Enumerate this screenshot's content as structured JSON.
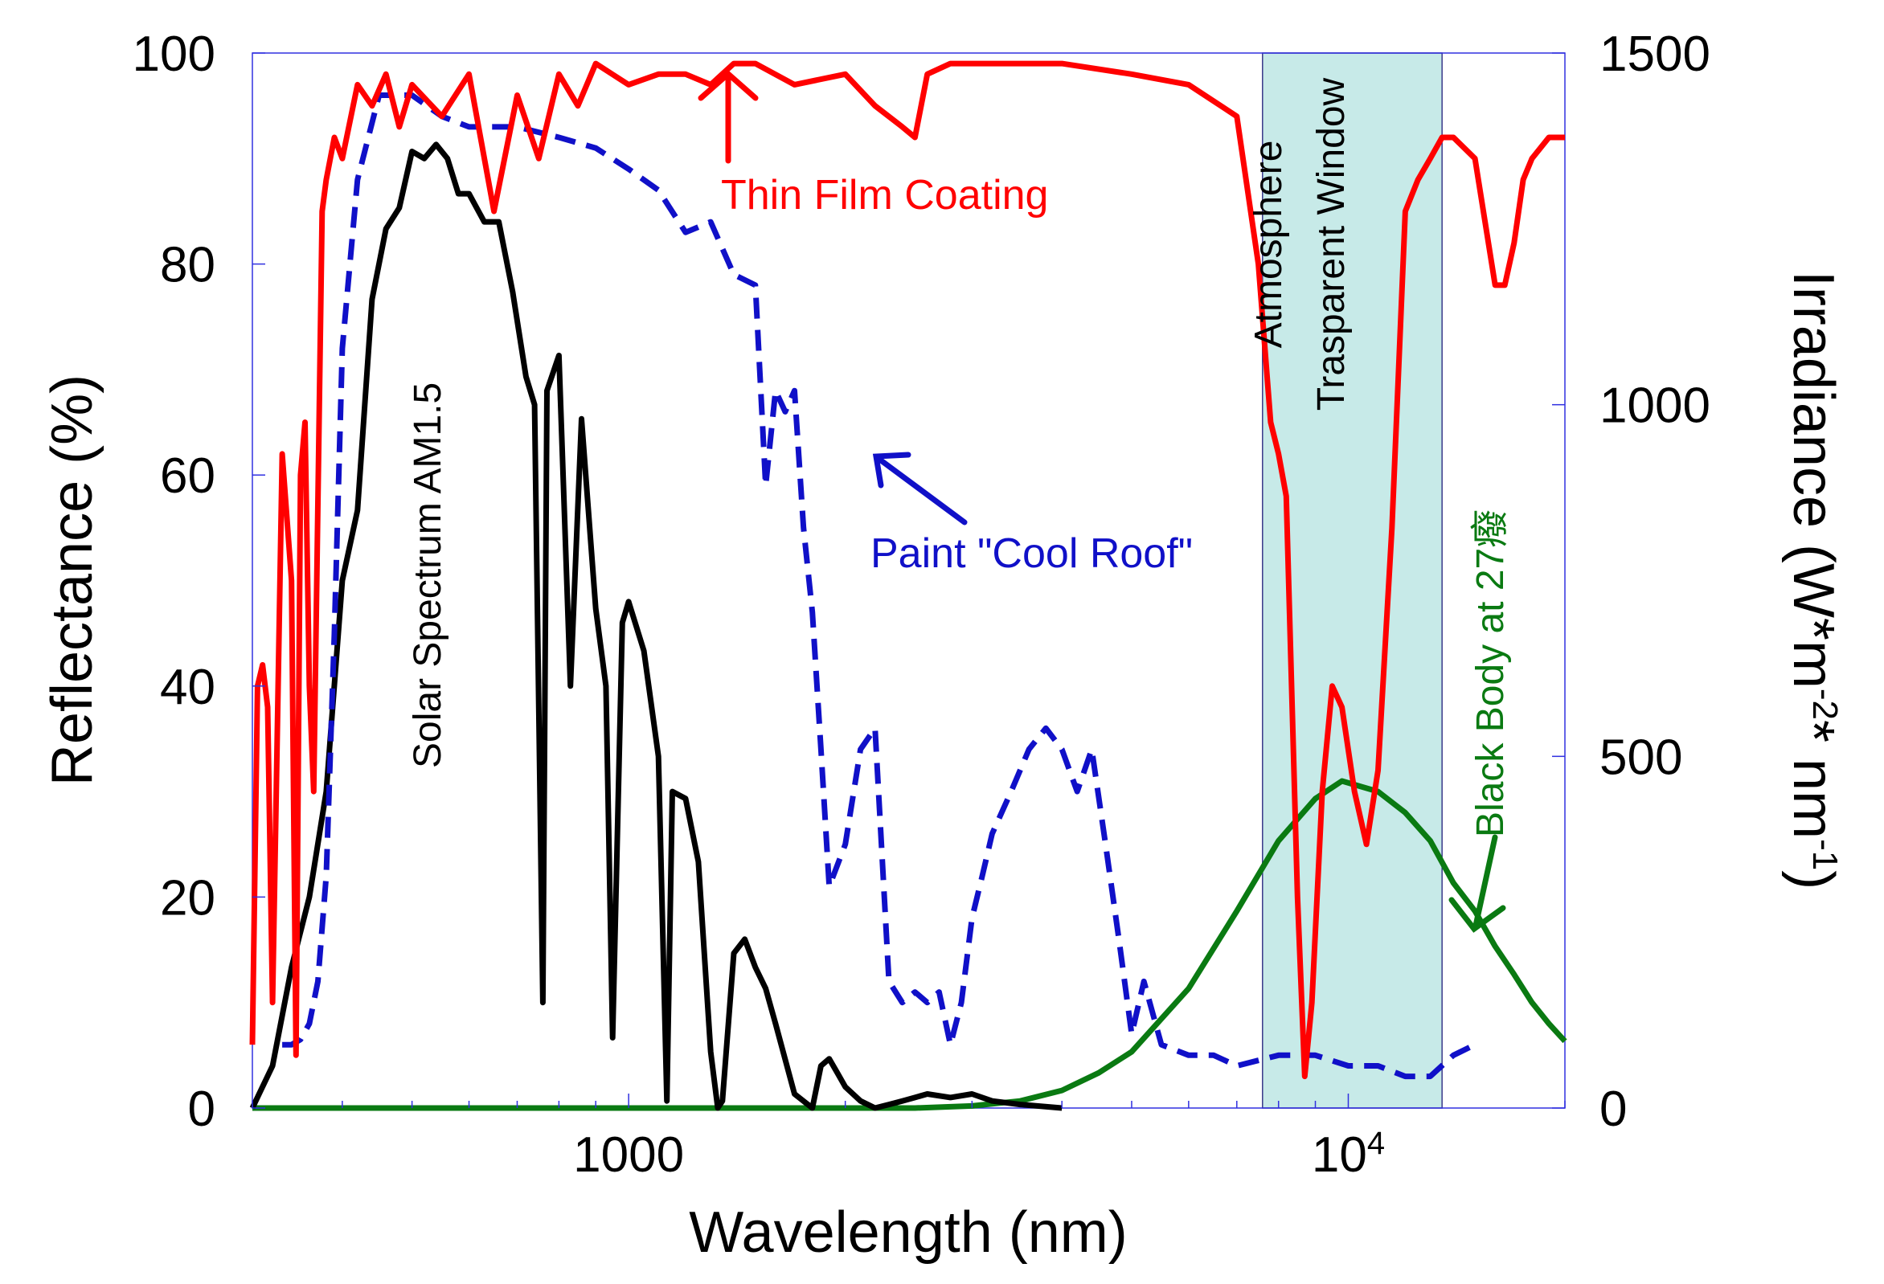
{
  "chart_data": {
    "type": "line",
    "title": "",
    "xlabel": "Wavelength (nm)",
    "ylabel": "Reflectance (%)",
    "y2label_main": "Irradiance (W*m",
    "y2label_sup1": "-2",
    "y2label_mid": "* nm",
    "y2label_sup2": "-1",
    "y2label_end": ")",
    "xscale": "log",
    "xlim": [
      300,
      20000
    ],
    "ylim": [
      0,
      100
    ],
    "y2lim": [
      0,
      1500
    ],
    "xticks": [
      {
        "value": 1000,
        "label": "1000"
      },
      {
        "value": 10000,
        "label": "10",
        "sup": "4"
      }
    ],
    "yticks": [
      0,
      20,
      40,
      60,
      80,
      100
    ],
    "y2ticks": [
      0,
      500,
      1000,
      1500
    ],
    "grid": false,
    "colors": {
      "thin_film": "#ff0000",
      "cool_roof": "#1010c8",
      "solar": "#000000",
      "blackbody": "#0a7a12",
      "window": "#c7eae8",
      "frame": "#3030e0"
    },
    "shaded_region": {
      "label_line1": "Atmosphere",
      "label_line2": "Trasparent Window",
      "x": [
        7600,
        13500
      ]
    },
    "annotations": {
      "thin_film": "Thin Film Coating",
      "cool_roof": "Paint \"Cool Roof\"",
      "solar": "Solar Spectrum AM1.5",
      "blackbody": "Black Body at 27癈"
    },
    "series": [
      {
        "name": "Thin Film Coating",
        "axis": "left",
        "style": "solid",
        "x": [
          300,
          305,
          310,
          315,
          320,
          330,
          340,
          345,
          350,
          355,
          360,
          365,
          375,
          380,
          390,
          400,
          420,
          440,
          460,
          480,
          500,
          550,
          600,
          650,
          700,
          750,
          800,
          850,
          900,
          1000,
          1100,
          1200,
          1300,
          1400,
          1500,
          1700,
          2000,
          2200,
          2400,
          2500,
          2600,
          2800,
          3000,
          3500,
          4000,
          5000,
          6000,
          7000,
          7500,
          7800,
          8000,
          8200,
          8500,
          8700,
          8900,
          9200,
          9500,
          9800,
          10200,
          10600,
          11000,
          11500,
          12000,
          12500,
          13000,
          13500,
          14000,
          15000,
          16000,
          16500,
          17000,
          17500,
          18000,
          19000,
          20000
        ],
        "y": [
          6,
          40,
          42,
          38,
          10,
          62,
          50,
          5,
          60,
          65,
          40,
          30,
          85,
          88,
          92,
          90,
          97,
          95,
          98,
          93,
          97,
          94,
          98,
          85,
          96,
          90,
          98,
          95,
          99,
          97,
          98,
          98,
          97,
          99,
          99,
          97,
          98,
          95,
          93,
          92,
          98,
          99,
          99,
          99,
          99,
          98,
          97,
          94,
          80,
          65,
          62,
          58,
          20,
          3,
          10,
          30,
          40,
          38,
          30,
          25,
          32,
          55,
          85,
          88,
          90,
          92,
          92,
          90,
          78,
          78,
          82,
          88,
          90,
          92,
          92
        ]
      },
      {
        "name": "Paint \"Cool Roof\"",
        "axis": "left",
        "style": "dashed",
        "x": [
          330,
          340,
          350,
          360,
          370,
          380,
          390,
          400,
          420,
          450,
          500,
          550,
          600,
          700,
          800,
          900,
          1000,
          1100,
          1200,
          1300,
          1400,
          1500,
          1550,
          1600,
          1650,
          1700,
          1750,
          1800,
          1850,
          1900,
          2000,
          2100,
          2200,
          2300,
          2400,
          2500,
          2600,
          2700,
          2800,
          2900,
          3000,
          3100,
          3200,
          3400,
          3600,
          3800,
          4000,
          4200,
          4400,
          4600,
          4800,
          5000,
          5200,
          5500,
          6000,
          6500,
          7000,
          8000,
          9000,
          10000,
          11000,
          12000,
          13000,
          14000,
          15000
        ],
        "y": [
          6,
          6,
          6.5,
          8,
          12,
          22,
          45,
          72,
          88,
          96,
          96,
          94,
          93,
          93,
          92,
          91,
          89,
          87,
          83,
          84,
          79,
          78,
          59,
          68,
          66,
          68,
          55,
          47,
          34,
          21,
          25,
          34,
          36,
          12,
          10,
          11,
          10,
          11,
          6,
          10,
          18,
          22,
          26,
          30,
          34,
          36,
          34,
          30,
          34,
          25,
          16,
          7,
          12,
          6,
          5,
          5,
          4,
          5,
          5,
          4,
          4,
          3,
          3,
          5,
          6
        ]
      },
      {
        "name": "Solar Spectrum AM1.5",
        "axis": "right",
        "style": "solid",
        "x": [
          300,
          320,
          340,
          360,
          380,
          400,
          420,
          440,
          460,
          480,
          500,
          520,
          540,
          560,
          580,
          600,
          630,
          660,
          690,
          720,
          740,
          760,
          770,
          800,
          830,
          860,
          900,
          930,
          950,
          980,
          1000,
          1050,
          1100,
          1130,
          1150,
          1200,
          1250,
          1300,
          1330,
          1350,
          1400,
          1450,
          1500,
          1550,
          1600,
          1700,
          1800,
          1850,
          1900,
          1950,
          2000,
          2100,
          2200,
          2300,
          2400,
          2500,
          2600,
          2800,
          3000,
          3200,
          3500,
          4000
        ],
        "y": [
          0,
          60,
          200,
          300,
          450,
          750,
          850,
          1150,
          1250,
          1280,
          1360,
          1350,
          1370,
          1350,
          1300,
          1300,
          1260,
          1260,
          1160,
          1040,
          1000,
          150,
          1020,
          1070,
          600,
          980,
          710,
          600,
          100,
          690,
          720,
          650,
          500,
          10,
          450,
          440,
          350,
          80,
          0,
          10,
          220,
          240,
          200,
          170,
          120,
          20,
          0,
          60,
          70,
          50,
          30,
          10,
          0,
          5,
          10,
          15,
          20,
          15,
          20,
          10,
          5,
          0
        ]
      },
      {
        "name": "Black Body at 27癈",
        "axis": "right",
        "style": "solid",
        "x": [
          300,
          1000,
          2000,
          2500,
          3000,
          3500,
          4000,
          4500,
          5000,
          6000,
          7000,
          8000,
          9000,
          9800,
          11000,
          12000,
          13000,
          14000,
          15000,
          16000,
          17000,
          18000,
          19000,
          20000
        ],
        "y": [
          0,
          0,
          0,
          0,
          3,
          10,
          25,
          50,
          80,
          170,
          280,
          380,
          440,
          465,
          450,
          420,
          380,
          320,
          280,
          230,
          190,
          150,
          120,
          95
        ]
      }
    ]
  }
}
